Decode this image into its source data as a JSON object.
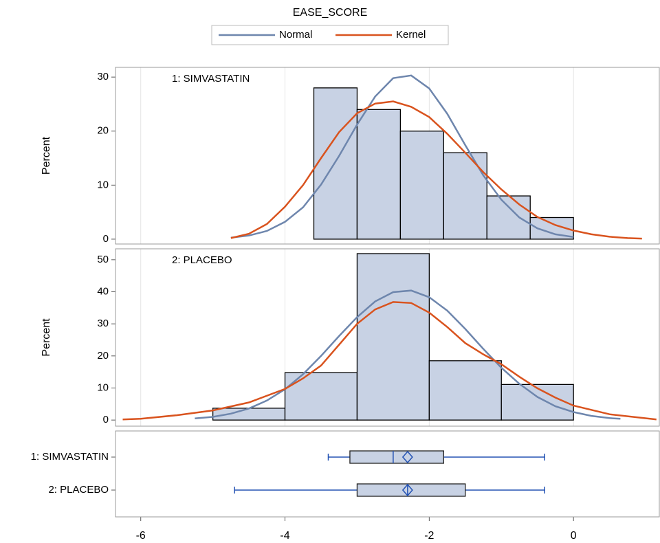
{
  "chart_data": [
    {
      "type": "histogram",
      "label": "1: SIMVASTATIN",
      "y_label": "Percent",
      "legend_title": "EASE_SCORE",
      "bins": [
        -3.6,
        -3.0,
        -2.4,
        -1.8,
        -1.2,
        -0.6,
        0
      ],
      "values": [
        28,
        24,
        20,
        16,
        8,
        4
      ],
      "color": "#c8d2e4",
      "series": [
        {
          "name": "Normal",
          "color": "#6e86ad",
          "x": [
            -4.75,
            -4.5,
            -4.25,
            -4,
            -3.75,
            -3.5,
            -3.25,
            -3,
            -2.75,
            -2.5,
            -2.25,
            -2,
            -1.75,
            -1.5,
            -1.25,
            -1,
            -0.75,
            -0.5,
            -0.25,
            0
          ],
          "values": [
            0.27,
            0.67,
            1.52,
            3.2,
            5.9,
            10.1,
            15.4,
            21.2,
            26.4,
            29.8,
            30.3,
            27.9,
            23.2,
            17.4,
            11.8,
            7.3,
            4.0,
            2.0,
            0.9,
            0.4
          ]
        },
        {
          "name": "Kernel",
          "color": "#d9531e",
          "x": [
            -4.75,
            -4.5,
            -4.25,
            -4,
            -3.75,
            -3.5,
            -3.25,
            -3,
            -2.75,
            -2.5,
            -2.25,
            -2,
            -1.75,
            -1.5,
            -1.25,
            -1,
            -0.75,
            -0.5,
            -0.25,
            0,
            0.25,
            0.5,
            0.75,
            0.95
          ],
          "values": [
            0.2,
            1.0,
            2.8,
            6.0,
            10.0,
            15.0,
            19.8,
            23.3,
            25.1,
            25.5,
            24.5,
            22.6,
            19.5,
            16.0,
            12.4,
            9.2,
            6.4,
            4.1,
            2.6,
            1.6,
            0.9,
            0.45,
            0.2,
            0.1
          ]
        }
      ],
      "xlim": [
        -6.35,
        1.19
      ],
      "xticks": [
        -6,
        -4,
        -2,
        0
      ],
      "ylim": [
        -0.9,
        31.8
      ],
      "yticks": [
        0,
        10,
        20,
        30
      ],
      "grid": true
    },
    {
      "type": "histogram",
      "label": "2: PLACEBO",
      "y_label": "Percent",
      "bins": [
        -5,
        -4,
        -3,
        -2,
        -1,
        0
      ],
      "values": [
        3.7,
        14.8,
        51.9,
        18.5,
        11.1
      ],
      "color": "#c8d2e4",
      "series": [
        {
          "name": "Normal",
          "color": "#6e86ad",
          "x": [
            -5.25,
            -5,
            -4.75,
            -4.5,
            -4.25,
            -4,
            -3.75,
            -3.5,
            -3.25,
            -3,
            -2.75,
            -2.5,
            -2.25,
            -2,
            -1.75,
            -1.5,
            -1.25,
            -1,
            -0.75,
            -0.5,
            -0.25,
            0,
            0.25,
            0.5,
            0.65
          ],
          "values": [
            0.5,
            1.0,
            2.0,
            3.6,
            6.1,
            9.6,
            14.3,
            20.0,
            26.2,
            32.1,
            37.0,
            39.9,
            40.4,
            38.3,
            34.1,
            28.4,
            22.2,
            16.3,
            11.3,
            7.2,
            4.3,
            2.5,
            1.3,
            0.6,
            0.4
          ]
        },
        {
          "name": "Kernel",
          "color": "#d9531e",
          "x": [
            -6.25,
            -6,
            -5.5,
            -5,
            -4.5,
            -4,
            -3.75,
            -3.5,
            -3.25,
            -3,
            -2.75,
            -2.5,
            -2.25,
            -2,
            -1.75,
            -1.5,
            -1.25,
            -1,
            -0.75,
            -0.5,
            -0.25,
            0,
            0.5,
            1.15
          ],
          "values": [
            0.2,
            0.4,
            1.5,
            3.0,
            5.5,
            9.7,
            13.0,
            17.0,
            23.5,
            30.0,
            34.5,
            36.8,
            36.5,
            33.5,
            29.0,
            24.0,
            20.5,
            17.4,
            13.5,
            9.9,
            7.0,
            4.5,
            1.8,
            0.2
          ]
        }
      ],
      "xlim": [
        -6.35,
        1.19
      ],
      "xticks": [
        -6,
        -4,
        -2,
        0
      ],
      "ylim": [
        -1.9,
        53.4
      ],
      "yticks": [
        0,
        10,
        20,
        30,
        40,
        50
      ],
      "grid": true
    },
    {
      "type": "box",
      "categories": [
        "1: SIMVASTATIN",
        "2: PLACEBO"
      ],
      "boxes": [
        {
          "min": -3.4,
          "q1": -3.1,
          "median": -2.5,
          "mean": -2.3,
          "q3": -1.8,
          "max": -0.4
        },
        {
          "min": -4.7,
          "q1": -3.0,
          "median": -2.3,
          "mean": -2.3,
          "q3": -1.5,
          "max": -0.4
        }
      ],
      "color": "#c8d2e4",
      "whisker_color": "#2352b4",
      "xlim": [
        -6.35,
        1.19
      ],
      "xticks": [
        -6,
        -4,
        -2,
        0
      ]
    }
  ]
}
